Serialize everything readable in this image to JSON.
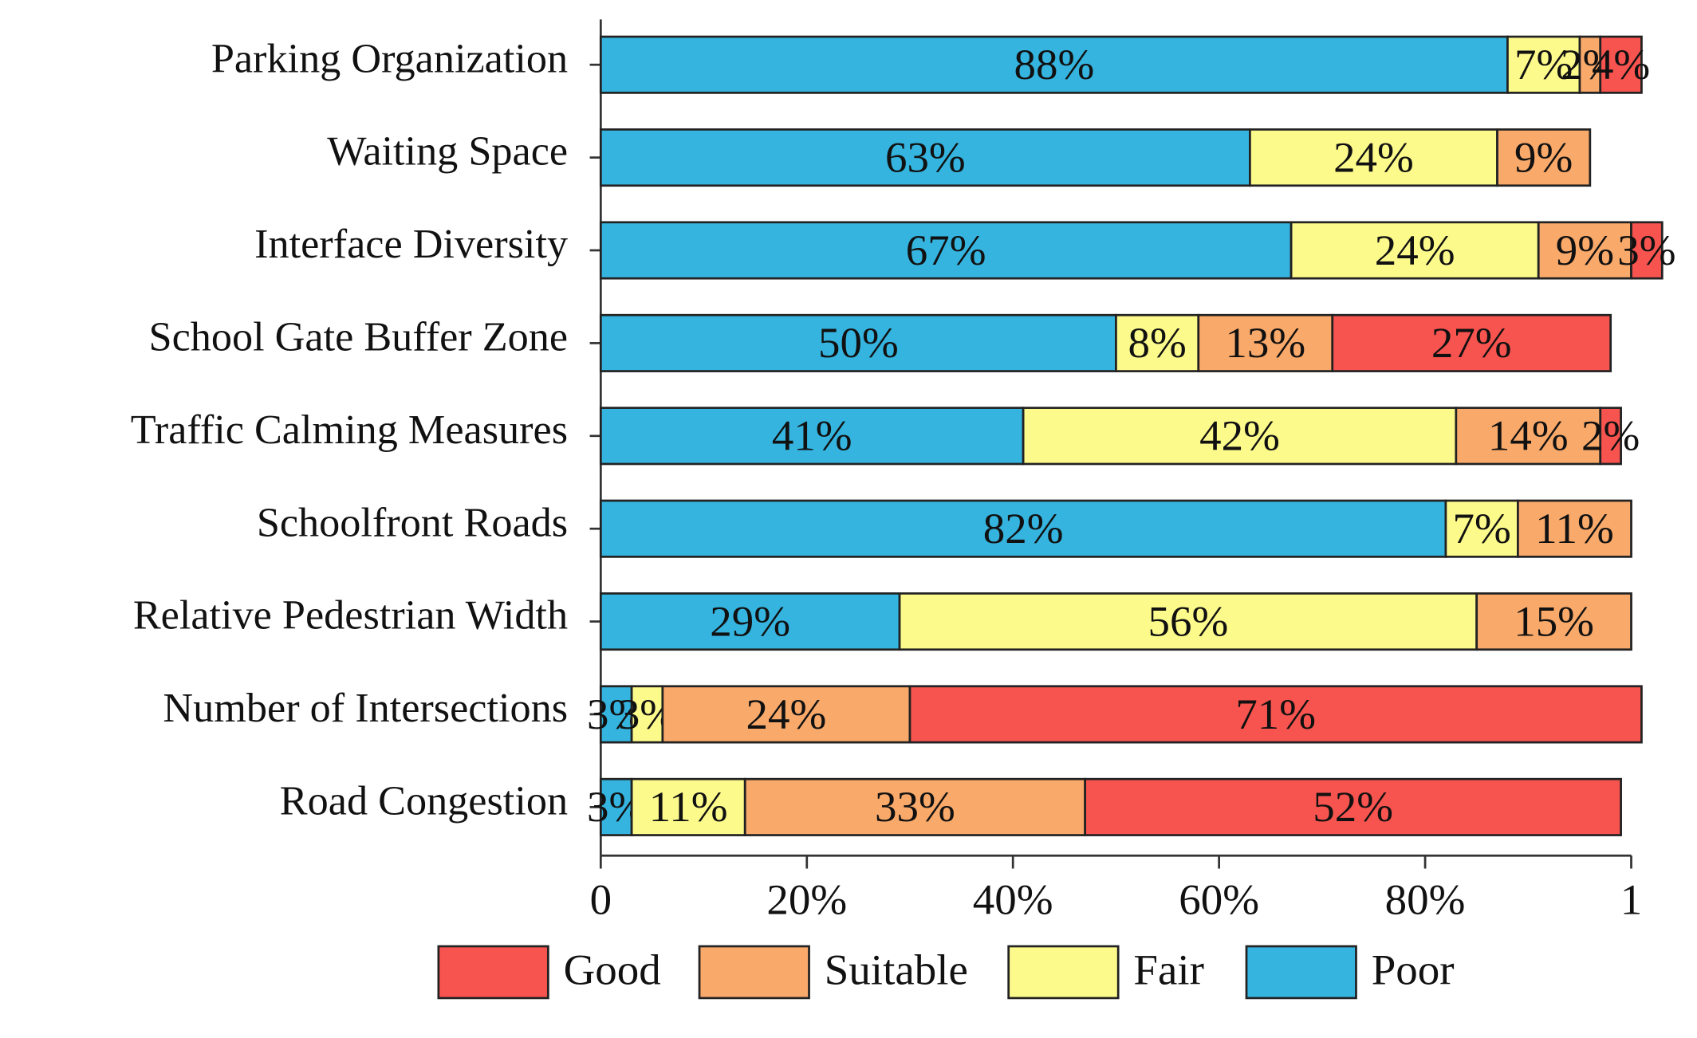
{
  "chart_data": {
    "type": "stacked-barh",
    "categories": [
      "Parking Organization",
      "Waiting Space",
      "Interface Diversity",
      "School Gate Buffer Zone",
      "Traffic Calming Measures",
      "Schoolfront Roads",
      "Relative Pedestrian Width",
      "Number of Intersections",
      "Road Congestion"
    ],
    "series": [
      {
        "name": "Poor",
        "color": "#35b4df",
        "values": [
          88,
          63,
          67,
          50,
          41,
          82,
          29,
          3,
          3
        ],
        "value_labels": [
          "88%",
          "63%",
          "67%",
          "50%",
          "41%",
          "82%",
          "29%",
          "3%",
          "3%"
        ]
      },
      {
        "name": "Fair",
        "color": "#fdfa8c",
        "values": [
          7,
          24,
          24,
          8,
          42,
          7,
          56,
          3,
          11
        ],
        "value_labels": [
          "7%",
          "24%",
          "24%",
          "8%",
          "42%",
          "7%",
          "56%",
          "3%",
          "11%"
        ]
      },
      {
        "name": "Suitable",
        "color": "#f9a96a",
        "values": [
          2,
          9,
          9,
          13,
          14,
          11,
          15,
          24,
          33
        ],
        "value_labels": [
          "2%",
          "9%",
          "9%",
          "13%",
          "14%",
          "11%",
          "15%",
          "24%",
          "33%"
        ]
      },
      {
        "name": "Good",
        "color": "#f8544f",
        "values": [
          4,
          null,
          3,
          27,
          2,
          null,
          null,
          71,
          52
        ],
        "value_labels": [
          "4%",
          null,
          "3%",
          "27%",
          "2%",
          null,
          null,
          "71%",
          "52%"
        ]
      }
    ],
    "xlim": [
      0,
      100
    ],
    "xticks": [
      0,
      {
        "value": 20,
        "label": "20%"
      },
      {
        "value": 40,
        "label": "40%"
      },
      {
        "value": 60,
        "label": "60%"
      },
      {
        "value": 80,
        "label": "80%"
      },
      {
        "value": 100,
        "label": "1"
      }
    ],
    "legend": "bottom"
  }
}
